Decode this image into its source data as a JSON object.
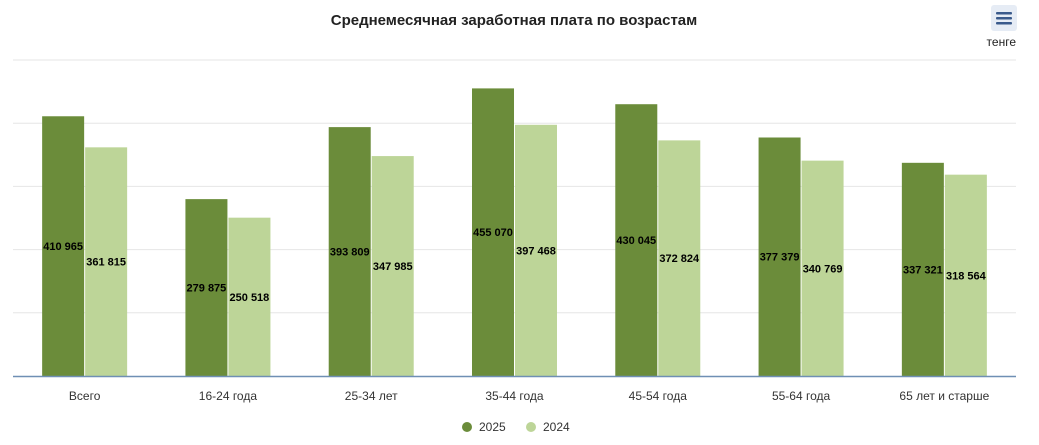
{
  "chart_data": {
    "type": "bar",
    "title": "Среднемесячная заработная плата по возрастам",
    "unit_label": "тенге",
    "categories": [
      "Всего",
      "16-24 года",
      "25-34 лет",
      "35-44 года",
      "45-54 года",
      "55-64 года",
      "65 лет и старше"
    ],
    "series": [
      {
        "name": "2025",
        "color": "#6b8c3a",
        "values": [
          410965,
          279875,
          393809,
          455070,
          430045,
          377379,
          337321
        ],
        "labels": [
          "410 965",
          "279 875",
          "393 809",
          "455 070",
          "430 045",
          "377 379",
          "337 321"
        ]
      },
      {
        "name": "2024",
        "color": "#bdd598",
        "values": [
          361815,
          250518,
          347985,
          397468,
          372824,
          340769,
          318564
        ],
        "labels": [
          "361 815",
          "250 518",
          "347 985",
          "397 468",
          "372 824",
          "340 769",
          "318 564"
        ]
      }
    ],
    "ylim": [
      0,
      500000
    ],
    "grid": true,
    "legend_position": "bottom-center"
  },
  "menu_icon": "hamburger-menu-icon",
  "colors": {
    "axis": "#6f8fb4",
    "grid": "#e6e6e6",
    "menu_bg": "#e6ecf5",
    "menu_icon": "#3a5a8c"
  }
}
